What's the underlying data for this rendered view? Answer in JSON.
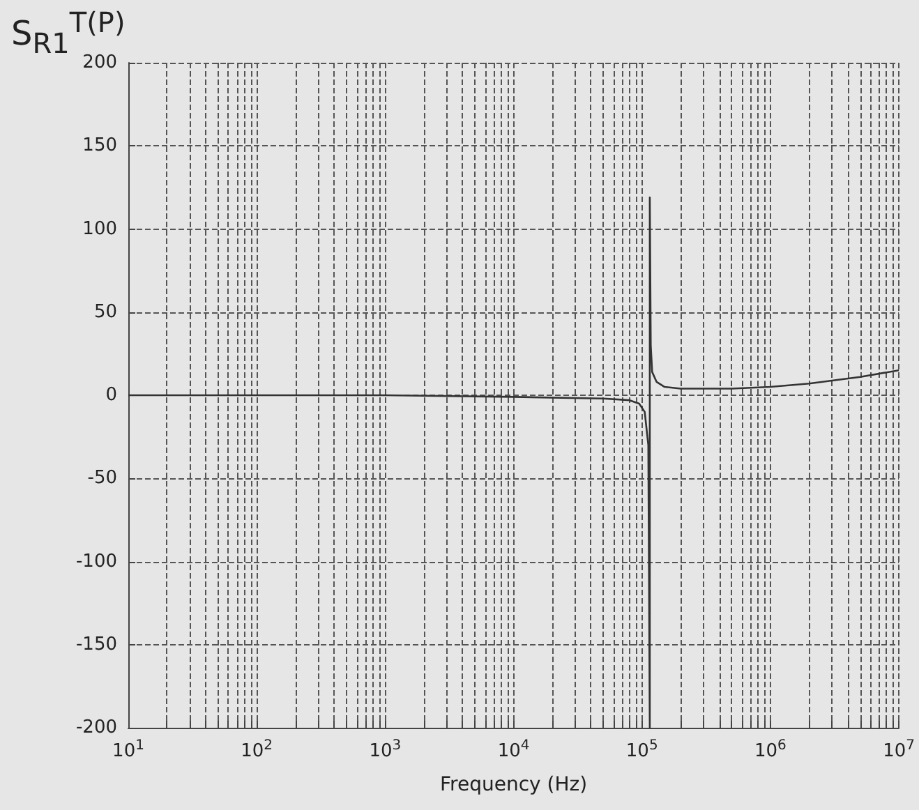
{
  "chart_data": {
    "type": "line",
    "xlabel": "Frequency (Hz)",
    "ylabel": "S$_{R1}$$^{T(P)}$",
    "log": "x",
    "grid": true,
    "marker": "none",
    "line_style": "solid",
    "xlim": [
      10,
      10000000
    ],
    "xticks": [
      {
        "value": 10,
        "label": "10$^{1}$"
      },
      {
        "value": 100,
        "label": "10$^{2}$"
      },
      {
        "value": 1000,
        "label": "10$^{3}$"
      },
      {
        "value": 10000,
        "label": "10$^{4}$"
      },
      {
        "value": 100000,
        "label": "10$^{5}$"
      },
      {
        "value": 1000000,
        "label": "10$^{6}$"
      },
      {
        "value": 10000000,
        "label": "10$^{7}$"
      }
    ],
    "ylim": [
      -200,
      200
    ],
    "yticks": [
      -200,
      -150,
      -100,
      -50,
      0,
      50,
      100,
      150,
      200
    ],
    "series": [
      {
        "color": "#333333",
        "x": [
          10,
          100,
          1000,
          10000,
          50000,
          80000,
          95000,
          105000,
          112000,
          115000,
          115000,
          117000,
          120000,
          130000,
          150000,
          200000,
          500000,
          1000000,
          2000000,
          5000000,
          10000000
        ],
        "values": [
          0,
          0,
          0,
          -1,
          -2,
          -3,
          -5,
          -10,
          -30,
          -200,
          119,
          30,
          14,
          8,
          5,
          4,
          4,
          5,
          7,
          11,
          15
        ]
      }
    ]
  }
}
